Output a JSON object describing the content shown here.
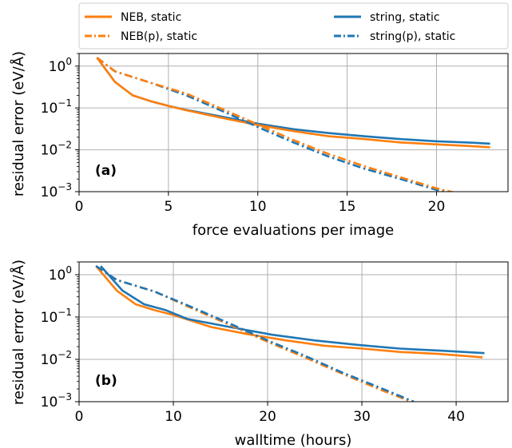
{
  "legend": {
    "placement": "top, outside plots, 2 columns",
    "entries": [
      {
        "label": "NEB, static",
        "color": "#ff7f0e",
        "dash": "solid"
      },
      {
        "label": "NEB(p), static",
        "color": "#ff7f0e",
        "dash": "dashdot"
      },
      {
        "label": "string, static",
        "color": "#1f77b4",
        "dash": "solid"
      },
      {
        "label": "string(p), static",
        "color": "#1f77b4",
        "dash": "dashdot"
      }
    ]
  },
  "colors": {
    "neb": "#ff7f0e",
    "string": "#1f77b4",
    "grid": "#b0b0b0"
  },
  "chart_data": [
    {
      "type": "line",
      "panel_label": "(a)",
      "xlabel": "force evaluations per image",
      "ylabel": "residual error (eV/Å)",
      "xlim": [
        0,
        24
      ],
      "ylim": [
        0.001,
        2.0
      ],
      "yscale": "log",
      "grid": true,
      "xticks": [
        0,
        5,
        10,
        15,
        20
      ],
      "xtick_labels": [
        "0",
        "5",
        "10",
        "15",
        "20"
      ],
      "yticks": [
        1,
        0.1,
        0.01,
        0.001
      ],
      "ytick_labels": [
        {
          "base": "10",
          "exp": "0"
        },
        {
          "base": "10",
          "exp": "−1"
        },
        {
          "base": "10",
          "exp": "−2"
        },
        {
          "base": "10",
          "exp": "−3"
        }
      ],
      "series": [
        {
          "name": "string, static",
          "color": "#1f77b4",
          "dash": "solid",
          "x": [
            1,
            2,
            3,
            4,
            5,
            6,
            8,
            10,
            12,
            14,
            16,
            18,
            20,
            22,
            23
          ],
          "y": [
            1.6,
            0.42,
            0.2,
            0.145,
            0.112,
            0.09,
            0.062,
            0.042,
            0.031,
            0.025,
            0.021,
            0.018,
            0.016,
            0.0148,
            0.014
          ]
        },
        {
          "name": "NEB, static",
          "color": "#ff7f0e",
          "dash": "solid",
          "x": [
            1,
            2,
            3,
            4,
            5,
            6,
            8,
            10,
            12,
            14,
            16,
            18,
            20,
            22,
            23
          ],
          "y": [
            1.6,
            0.42,
            0.2,
            0.145,
            0.112,
            0.088,
            0.058,
            0.039,
            0.028,
            0.021,
            0.018,
            0.015,
            0.0135,
            0.0122,
            0.0115
          ]
        },
        {
          "name": "string(p), static",
          "color": "#1f77b4",
          "dash": "dashdot",
          "x": [
            1,
            2,
            4,
            6,
            8,
            10,
            12,
            14,
            16,
            18,
            20,
            21
          ],
          "y": [
            1.6,
            0.75,
            0.4,
            0.2,
            0.085,
            0.035,
            0.015,
            0.0068,
            0.0035,
            0.002,
            0.0011,
            0.0009
          ]
        },
        {
          "name": "NEB(p), static",
          "color": "#ff7f0e",
          "dash": "dashdot",
          "x": [
            1,
            2,
            4,
            6,
            8,
            10,
            12,
            14,
            16,
            18,
            20,
            21
          ],
          "y": [
            1.6,
            0.75,
            0.4,
            0.22,
            0.095,
            0.04,
            0.017,
            0.0078,
            0.004,
            0.0022,
            0.0012,
            0.00095
          ]
        }
      ]
    },
    {
      "type": "line",
      "panel_label": "(b)",
      "xlabel": "walltime (hours)",
      "ylabel": "residual error (eV/Å)",
      "xlim": [
        0,
        45.5
      ],
      "ylim": [
        0.001,
        2.0
      ],
      "yscale": "log",
      "grid": true,
      "xticks": [
        0,
        10,
        20,
        30,
        40
      ],
      "xtick_labels": [
        "0",
        "10",
        "20",
        "30",
        "40"
      ],
      "yticks": [
        1,
        0.1,
        0.01,
        0.001
      ],
      "ytick_labels": [
        {
          "base": "10",
          "exp": "0"
        },
        {
          "base": "10",
          "exp": "−1"
        },
        {
          "base": "10",
          "exp": "−2"
        },
        {
          "base": "10",
          "exp": "−3"
        }
      ],
      "series": [
        {
          "name": "NEB, static",
          "color": "#ff7f0e",
          "dash": "solid",
          "x": [
            1.8,
            4,
            6,
            8,
            10,
            14,
            18,
            22,
            26,
            30,
            34,
            38,
            42.8
          ],
          "y": [
            1.6,
            0.42,
            0.2,
            0.145,
            0.112,
            0.058,
            0.039,
            0.028,
            0.021,
            0.018,
            0.015,
            0.0135,
            0.0112
          ]
        },
        {
          "name": "string, static",
          "color": "#1f77b4",
          "dash": "solid",
          "x": [
            2.3,
            4.6,
            6.9,
            9.2,
            11.5,
            16,
            20.5,
            25,
            29.5,
            34,
            38.5,
            43
          ],
          "y": [
            1.6,
            0.42,
            0.2,
            0.145,
            0.09,
            0.058,
            0.038,
            0.028,
            0.022,
            0.018,
            0.016,
            0.014
          ]
        },
        {
          "name": "NEB(p), static",
          "color": "#ff7f0e",
          "dash": "dashdot",
          "x": [
            1.8,
            4,
            8,
            12,
            16,
            20,
            24,
            28,
            32,
            35.5
          ],
          "y": [
            1.6,
            0.75,
            0.4,
            0.16,
            0.065,
            0.026,
            0.011,
            0.0045,
            0.0019,
            0.00095
          ]
        },
        {
          "name": "string(p), static",
          "color": "#1f77b4",
          "dash": "dashdot",
          "x": [
            1.8,
            4,
            8,
            12,
            16,
            20,
            24,
            28,
            32,
            35.5
          ],
          "y": [
            1.6,
            0.75,
            0.4,
            0.17,
            0.07,
            0.028,
            0.012,
            0.0048,
            0.0021,
            0.001
          ]
        }
      ]
    }
  ]
}
